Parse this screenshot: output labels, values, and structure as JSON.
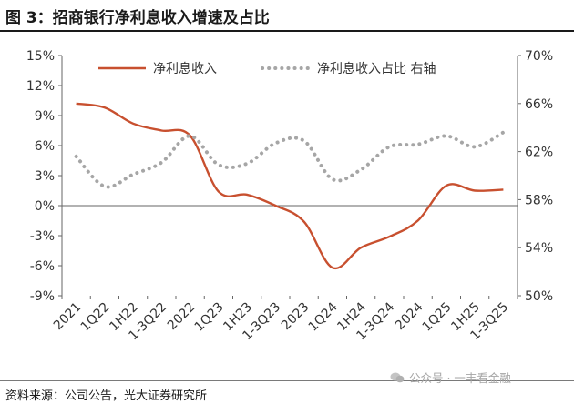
{
  "header": {
    "title": "图 3：招商银行净利息收入增速及占比"
  },
  "footer": {
    "source": "资料来源：公司公告，光大证券研究所",
    "watermark": "公众号 · 一丰看金融"
  },
  "colors": {
    "growth": "#c8502f",
    "share": "#a6a6a6",
    "axis": "#666666"
  },
  "chart_data": {
    "type": "line",
    "title": "",
    "categories": [
      "2021",
      "1Q22",
      "1H22",
      "1-3Q22",
      "2022",
      "1Q23",
      "1H23",
      "1-3Q23",
      "2023",
      "1Q24",
      "1H24",
      "1-3Q24",
      "2024",
      "1Q25",
      "1H25",
      "1-3Q25"
    ],
    "y_left": {
      "ticks": [
        "15%",
        "12%",
        "9%",
        "6%",
        "3%",
        "0%",
        "-3%",
        "-6%",
        "-9%"
      ],
      "range": [
        -9,
        15
      ],
      "unit": "%"
    },
    "y_right": {
      "ticks": [
        "70%",
        "66%",
        "62%",
        "58%",
        "54%",
        "50%"
      ],
      "range": [
        50,
        70
      ],
      "unit": "%"
    },
    "legend": {
      "placement": "top",
      "growth_label": "净利息收入",
      "share_label": "净利息收入占比 右轴"
    },
    "series": [
      {
        "name": "净利息收入",
        "axis": "left",
        "style": "solid",
        "values": [
          10.2,
          9.8,
          8.2,
          7.5,
          7.0,
          1.4,
          1.1,
          0.0,
          -1.6,
          -6.2,
          -4.2,
          -3.1,
          -1.5,
          2.0,
          1.5,
          1.6
        ]
      },
      {
        "name": "净利息收入占比 右轴",
        "axis": "right",
        "style": "dotted",
        "values": [
          61.6,
          59.1,
          60.1,
          61.1,
          63.3,
          60.9,
          61.0,
          62.7,
          62.9,
          59.7,
          60.5,
          62.4,
          62.6,
          63.3,
          62.4,
          63.6
        ]
      }
    ]
  }
}
